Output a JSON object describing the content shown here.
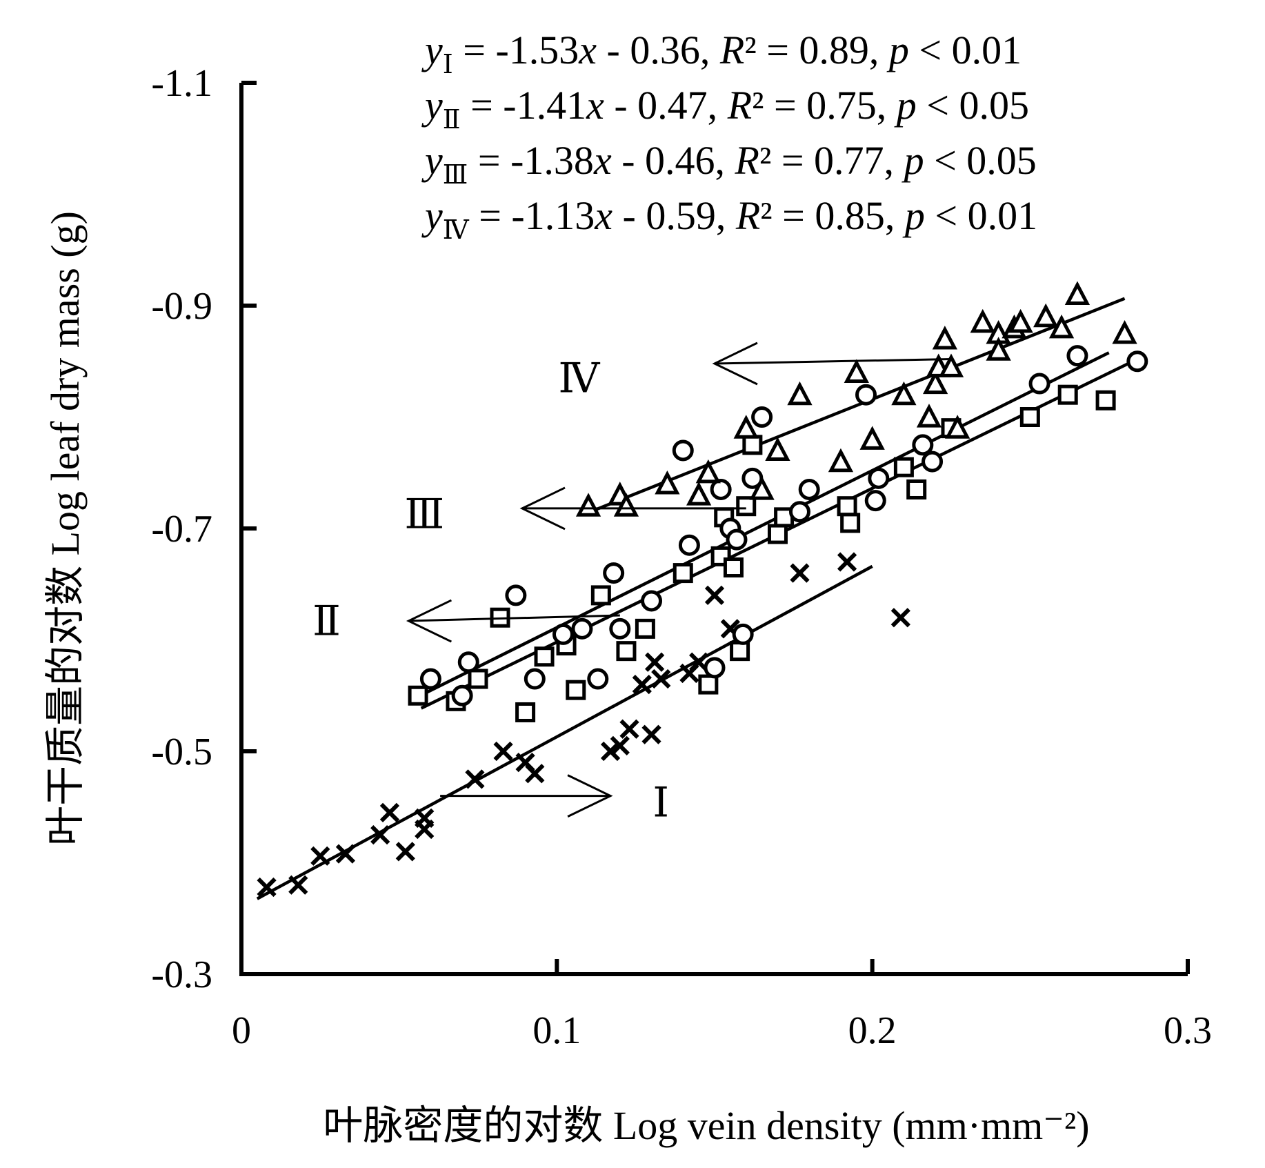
{
  "chart_data": {
    "type": "scatter",
    "xlabel": "叶脉密度的对数 Log vein density (mm·mm⁻²)",
    "ylabel": "叶干质量的对数 Log leaf dry mass (g)",
    "xlim": [
      0,
      0.3
    ],
    "ylim": [
      -0.3,
      -1.1
    ],
    "x_ticks": [
      "0",
      "0.1",
      "0.2",
      "0.3"
    ],
    "y_ticks": [
      "-1.1",
      "-0.9",
      "-0.7",
      "-0.5",
      "-0.3"
    ],
    "grid": false,
    "equations": [
      {
        "sub": "Ⅰ",
        "slope": "-1.53",
        "intercept": "- 0.36",
        "r2": "0.89",
        "p": "0.01"
      },
      {
        "sub": "Ⅱ",
        "slope": "-1.41",
        "intercept": "- 0.47",
        "r2": "0.75",
        "p": "0.05"
      },
      {
        "sub": "Ⅲ",
        "slope": "-1.38",
        "intercept": "- 0.46",
        "r2": "0.77",
        "p": "0.05"
      },
      {
        "sub": "Ⅳ",
        "slope": "-1.13",
        "intercept": "- 0.59",
        "r2": "0.85",
        "p": "0.01"
      }
    ],
    "group_labels": [
      "Ⅰ",
      "Ⅱ",
      "Ⅲ",
      "Ⅳ"
    ],
    "series": [
      {
        "name": "Ⅰ",
        "marker": "cross",
        "fit_x": [
          0.005,
          0.2
        ],
        "points": [
          [
            0.008,
            -0.378
          ],
          [
            0.018,
            -0.38
          ],
          [
            0.025,
            -0.406
          ],
          [
            0.033,
            -0.408
          ],
          [
            0.044,
            -0.425
          ],
          [
            0.047,
            -0.445
          ],
          [
            0.052,
            -0.41
          ],
          [
            0.058,
            -0.44
          ],
          [
            0.058,
            -0.43
          ],
          [
            0.074,
            -0.475
          ],
          [
            0.083,
            -0.5
          ],
          [
            0.09,
            -0.49
          ],
          [
            0.093,
            -0.48
          ],
          [
            0.117,
            -0.5
          ],
          [
            0.12,
            -0.505
          ],
          [
            0.123,
            -0.52
          ],
          [
            0.127,
            -0.56
          ],
          [
            0.13,
            -0.515
          ],
          [
            0.131,
            -0.58
          ],
          [
            0.133,
            -0.565
          ],
          [
            0.142,
            -0.57
          ],
          [
            0.145,
            -0.58
          ],
          [
            0.15,
            -0.64
          ],
          [
            0.155,
            -0.61
          ],
          [
            0.177,
            -0.66
          ],
          [
            0.192,
            -0.67
          ],
          [
            0.209,
            -0.62
          ]
        ]
      },
      {
        "name": "Ⅱ",
        "marker": "square",
        "fit_x": [
          0.057,
          0.275
        ],
        "points": [
          [
            0.056,
            -0.55
          ],
          [
            0.068,
            -0.545
          ],
          [
            0.075,
            -0.565
          ],
          [
            0.082,
            -0.62
          ],
          [
            0.09,
            -0.535
          ],
          [
            0.096,
            -0.585
          ],
          [
            0.103,
            -0.595
          ],
          [
            0.106,
            -0.555
          ],
          [
            0.114,
            -0.64
          ],
          [
            0.122,
            -0.59
          ],
          [
            0.128,
            -0.61
          ],
          [
            0.14,
            -0.66
          ],
          [
            0.148,
            -0.56
          ],
          [
            0.152,
            -0.675
          ],
          [
            0.153,
            -0.71
          ],
          [
            0.156,
            -0.665
          ],
          [
            0.158,
            -0.59
          ],
          [
            0.16,
            -0.72
          ],
          [
            0.162,
            -0.775
          ],
          [
            0.17,
            -0.695
          ],
          [
            0.172,
            -0.71
          ],
          [
            0.192,
            -0.72
          ],
          [
            0.193,
            -0.705
          ],
          [
            0.21,
            -0.755
          ],
          [
            0.214,
            -0.735
          ],
          [
            0.225,
            -0.79
          ],
          [
            0.25,
            -0.8
          ],
          [
            0.262,
            -0.82
          ],
          [
            0.274,
            -0.815
          ]
        ]
      },
      {
        "name": "Ⅲ",
        "marker": "circle",
        "fit_x": [
          0.057,
          0.282
        ],
        "points": [
          [
            0.06,
            -0.565
          ],
          [
            0.07,
            -0.55
          ],
          [
            0.072,
            -0.58
          ],
          [
            0.087,
            -0.64
          ],
          [
            0.093,
            -0.565
          ],
          [
            0.102,
            -0.605
          ],
          [
            0.108,
            -0.61
          ],
          [
            0.113,
            -0.565
          ],
          [
            0.118,
            -0.66
          ],
          [
            0.12,
            -0.61
          ],
          [
            0.13,
            -0.635
          ],
          [
            0.14,
            -0.77
          ],
          [
            0.142,
            -0.685
          ],
          [
            0.15,
            -0.575
          ],
          [
            0.152,
            -0.735
          ],
          [
            0.155,
            -0.7
          ],
          [
            0.157,
            -0.69
          ],
          [
            0.159,
            -0.605
          ],
          [
            0.162,
            -0.745
          ],
          [
            0.165,
            -0.8
          ],
          [
            0.177,
            -0.715
          ],
          [
            0.18,
            -0.735
          ],
          [
            0.198,
            -0.82
          ],
          [
            0.201,
            -0.725
          ],
          [
            0.202,
            -0.745
          ],
          [
            0.216,
            -0.775
          ],
          [
            0.219,
            -0.76
          ],
          [
            0.253,
            -0.83
          ],
          [
            0.265,
            -0.855
          ],
          [
            0.284,
            -0.85
          ]
        ]
      },
      {
        "name": "Ⅳ",
        "marker": "triangle",
        "fit_x": [
          0.11,
          0.28
        ],
        "points": [
          [
            0.11,
            -0.72
          ],
          [
            0.12,
            -0.73
          ],
          [
            0.122,
            -0.72
          ],
          [
            0.135,
            -0.74
          ],
          [
            0.145,
            -0.73
          ],
          [
            0.148,
            -0.75
          ],
          [
            0.16,
            -0.79
          ],
          [
            0.165,
            -0.735
          ],
          [
            0.17,
            -0.77
          ],
          [
            0.177,
            -0.82
          ],
          [
            0.19,
            -0.76
          ],
          [
            0.195,
            -0.84
          ],
          [
            0.2,
            -0.78
          ],
          [
            0.21,
            -0.82
          ],
          [
            0.218,
            -0.8
          ],
          [
            0.22,
            -0.83
          ],
          [
            0.221,
            -0.845
          ],
          [
            0.223,
            -0.87
          ],
          [
            0.225,
            -0.845
          ],
          [
            0.227,
            -0.79
          ],
          [
            0.235,
            -0.885
          ],
          [
            0.24,
            -0.875
          ],
          [
            0.24,
            -0.86
          ],
          [
            0.245,
            -0.88
          ],
          [
            0.247,
            -0.885
          ],
          [
            0.255,
            -0.89
          ],
          [
            0.26,
            -0.88
          ],
          [
            0.265,
            -0.91
          ],
          [
            0.28,
            -0.875
          ]
        ]
      }
    ]
  }
}
